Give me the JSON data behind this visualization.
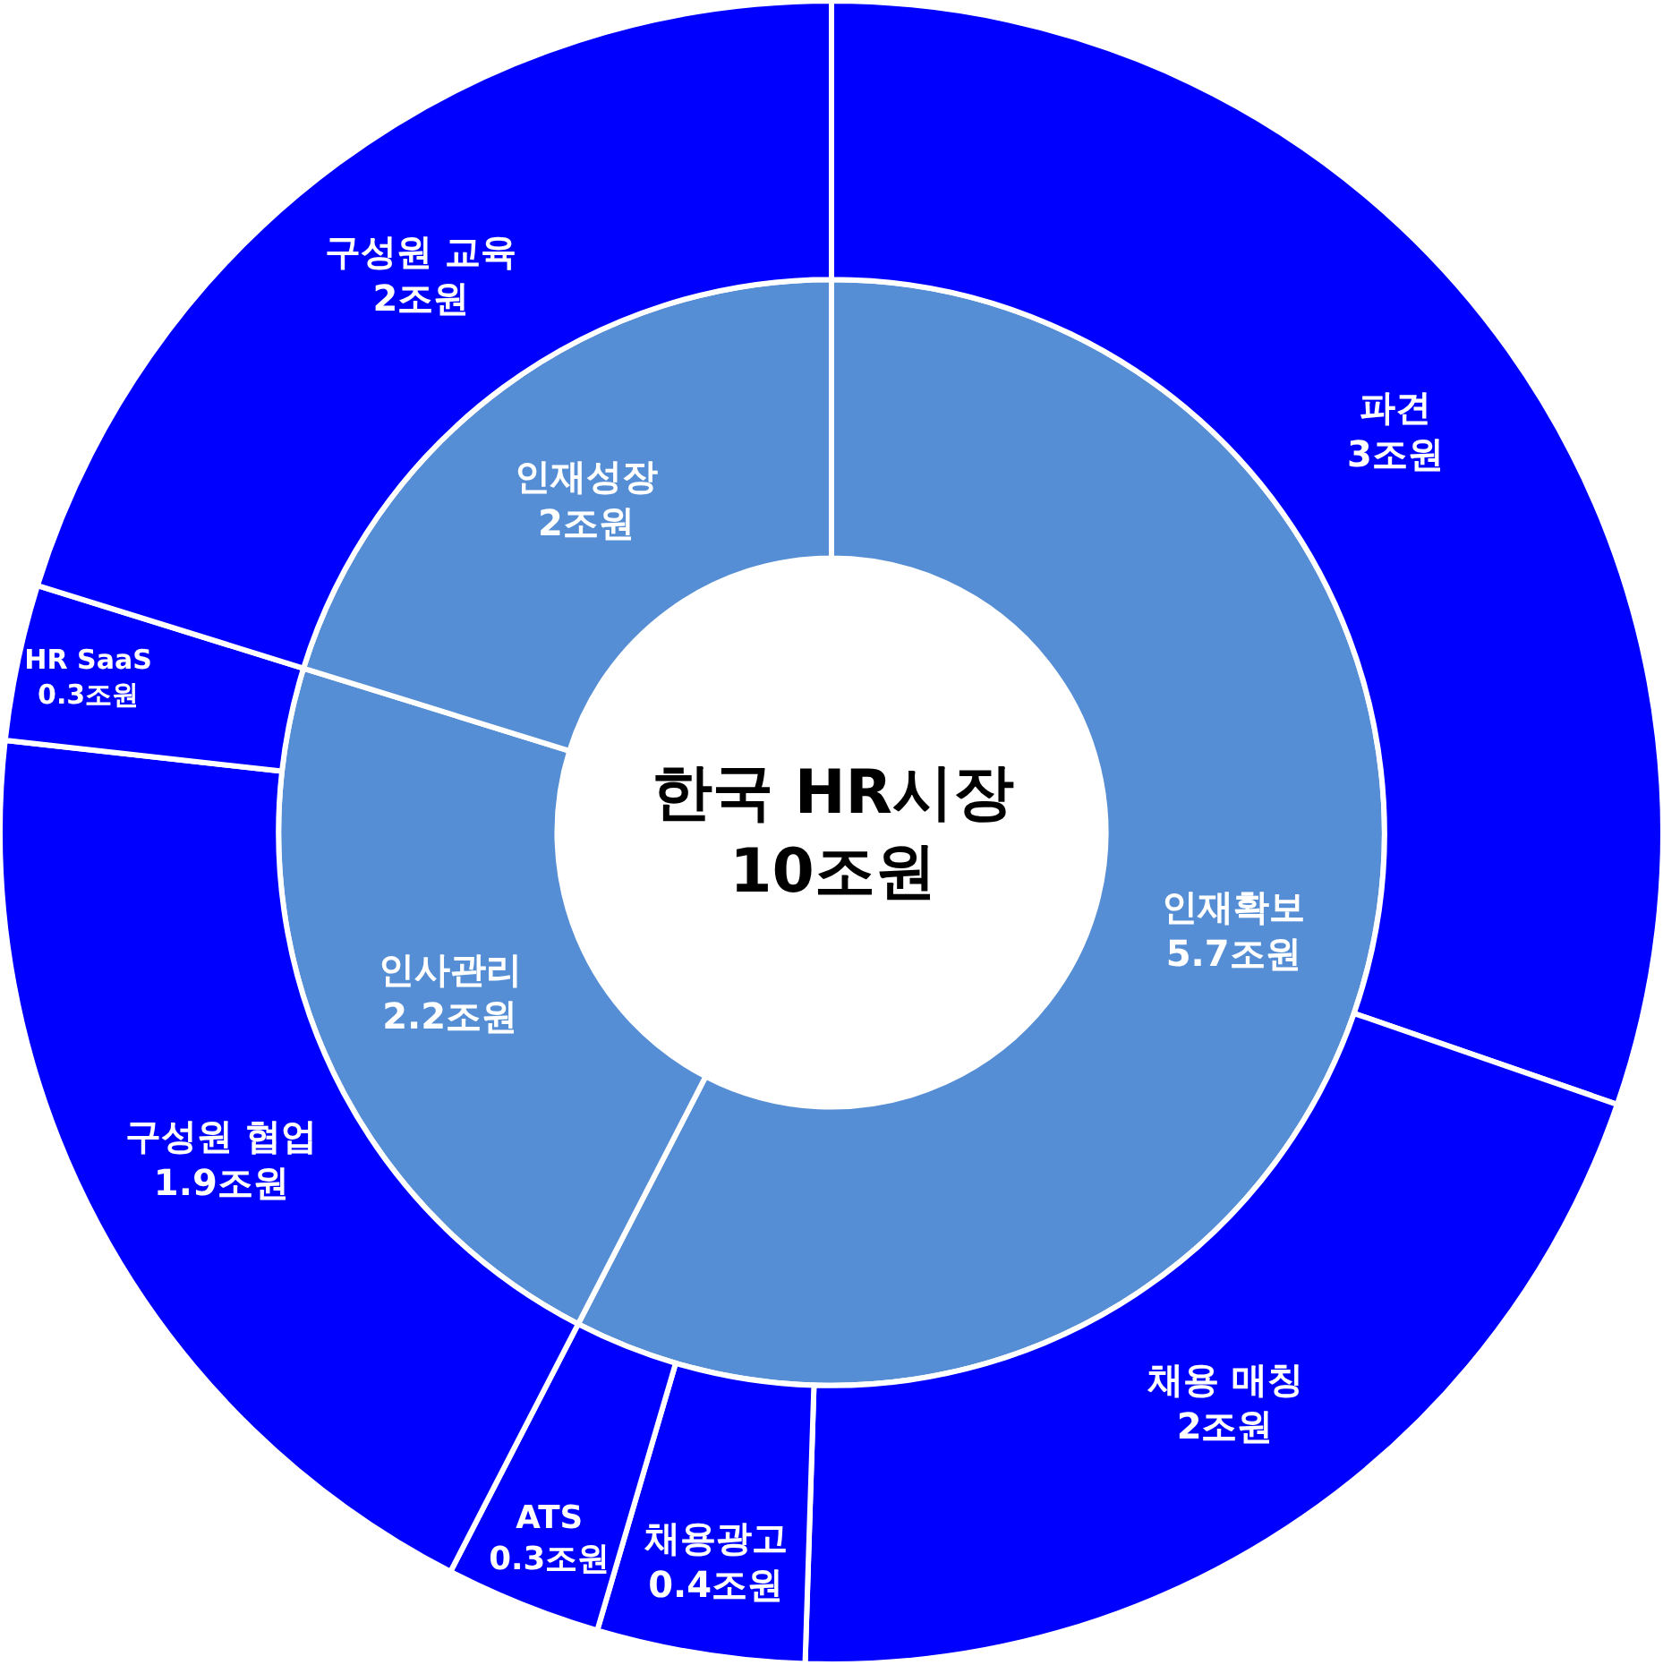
{
  "chart_data": [
    {
      "type": "donut",
      "title": "한국 HR시장\n10조원",
      "categories": [
        "인재확보",
        "인사관리",
        "인재성장"
      ],
      "values": [
        5.7,
        2.2,
        2
      ],
      "value_labels": [
        "5.7조원",
        "2.2조원",
        "2조원"
      ],
      "colors": [
        "#558ed5",
        "#558ed5",
        "#558ed5"
      ]
    },
    {
      "type": "donut",
      "categories": [
        "파견",
        "채용 매칭",
        "채용광고",
        "ATS",
        "구성원 협업",
        "HR SaaS",
        "구성원 교육"
      ],
      "values": [
        3,
        2,
        0.4,
        0.3,
        1.9,
        0.3,
        2
      ],
      "value_labels": [
        "3조원",
        "2조원",
        "0.4조원",
        "0.3조원",
        "1.9조원",
        "0.3조원",
        "2조원"
      ],
      "colors": [
        "#0000ff",
        "#0000ff",
        "#0000ff",
        "#0000ff",
        "#0000ff",
        "#0000ff",
        "#0000ff"
      ]
    }
  ]
}
